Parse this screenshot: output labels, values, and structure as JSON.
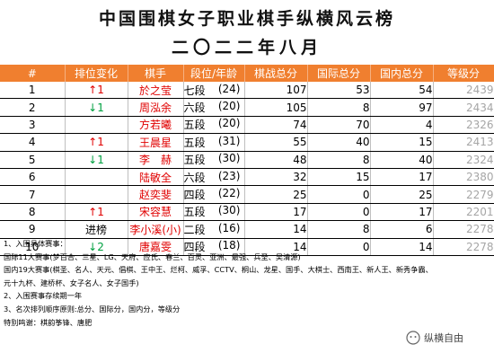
{
  "title": "中国围棋女子职业棋手纵横风云榜",
  "subtitle": "二〇二二年八月",
  "columns": [
    "#",
    "排位变化",
    "棋手",
    "段位/年龄",
    "棋战总分",
    "国际总分",
    "国内总分",
    "等级分"
  ],
  "rows": [
    {
      "rank": "1",
      "change": "↑1",
      "dir": "up",
      "name": "於之莹",
      "dan": "七段",
      "age": "(24)",
      "total": "107",
      "intl": "53",
      "dom": "54",
      "rating": "2439"
    },
    {
      "rank": "2",
      "change": "↓1",
      "dir": "down",
      "name": "周泓余",
      "dan": "六段",
      "age": "(20)",
      "total": "105",
      "intl": "8",
      "dom": "97",
      "rating": "2434"
    },
    {
      "rank": "3",
      "change": "",
      "dir": "none",
      "name": "方若曦",
      "dan": "五段",
      "age": "(20)",
      "total": "74",
      "intl": "70",
      "dom": "4",
      "rating": "2326"
    },
    {
      "rank": "4",
      "change": "↑1",
      "dir": "up",
      "name": "王晨星",
      "dan": "五段",
      "age": "(31)",
      "total": "55",
      "intl": "40",
      "dom": "15",
      "rating": "2413"
    },
    {
      "rank": "5",
      "change": "↓1",
      "dir": "down",
      "name": "李　赫",
      "dan": "五段",
      "age": "(30)",
      "total": "48",
      "intl": "8",
      "dom": "40",
      "rating": "2324"
    },
    {
      "rank": "6",
      "change": "",
      "dir": "none",
      "name": "陆敏全",
      "dan": "六段",
      "age": "(23)",
      "total": "32",
      "intl": "15",
      "dom": "17",
      "rating": "2380"
    },
    {
      "rank": "7",
      "change": "",
      "dir": "none",
      "name": "赵奕斐",
      "dan": "四段",
      "age": "(22)",
      "total": "25",
      "intl": "0",
      "dom": "25",
      "rating": "2279"
    },
    {
      "rank": "8",
      "change": "↑1",
      "dir": "up",
      "name": "宋容慧",
      "dan": "五段",
      "age": "(30)",
      "total": "17",
      "intl": "0",
      "dom": "17",
      "rating": "2201"
    },
    {
      "rank": "9",
      "change": "进榜",
      "dir": "neutral",
      "name": "李小溪(小)",
      "dan": "二段",
      "age": "(16)",
      "total": "14",
      "intl": "8",
      "dom": "6",
      "rating": "2278"
    },
    {
      "rank": "10",
      "change": "↓2",
      "dir": "down",
      "name": "唐嘉雯",
      "dan": "四段",
      "age": "(18)",
      "total": "14",
      "intl": "0",
      "dom": "14",
      "rating": "2278"
    }
  ],
  "notes": [
    "1、入围具体赛事：",
    "国际11大赛事(梦百合、三星、LG、天府、应氏、春兰、百灵、亚洲、最强、兵圣、吴清源)",
    "国内19大赛事(棋圣、名人、天元、倡棋、王中王、烂柯、威孚、CCTV、桐山、龙星、国手、大棋士、西南王、新人王、新秀争霸、",
    "元十九杯、建桥杯、女子名人、女子国手)",
    "2、入围赛事存续期一年",
    "3、名次排列顺序原则:总分、国际分，国内分，等级分",
    "特别鸣谢：棋韵筝锋、唐肥"
  ],
  "watermark": "纵横自由",
  "colors": {
    "header": "#f07f2f",
    "up": "#e00000",
    "down": "#00a040",
    "name": "#e00000",
    "rating": "#a6a6a6"
  }
}
